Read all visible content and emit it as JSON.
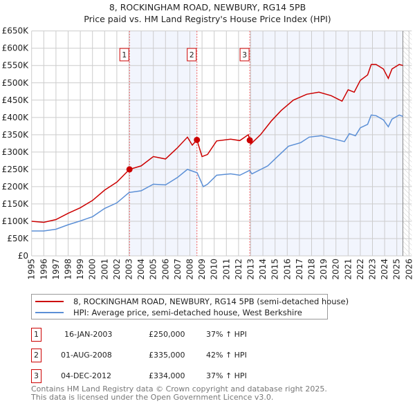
{
  "chart_data": {
    "type": "line",
    "title": "8, ROCKINGHAM ROAD, NEWBURY, RG14 5PB",
    "subtitle": "Price paid vs. HM Land Registry's House Price Index (HPI)",
    "xlim": [
      1995,
      2026
    ],
    "ylim": [
      0,
      650000
    ],
    "grid": true,
    "x_ticks": [
      "1995",
      "1996",
      "1997",
      "1998",
      "1999",
      "2000",
      "2001",
      "2002",
      "2003",
      "2004",
      "2005",
      "2006",
      "2007",
      "2008",
      "2009",
      "2010",
      "2011",
      "2012",
      "2013",
      "2014",
      "2015",
      "2016",
      "2017",
      "2018",
      "2019",
      "2020",
      "2021",
      "2022",
      "2023",
      "2024",
      "2025",
      "2026"
    ],
    "y_ticks": [
      "£0",
      "£50K",
      "£100K",
      "£150K",
      "£200K",
      "£250K",
      "£300K",
      "£350K",
      "£400K",
      "£450K",
      "£500K",
      "£550K",
      "£600K",
      "£650K"
    ],
    "series": [
      {
        "name": "8, ROCKINGHAM ROAD, NEWBURY, RG14 5PB (semi-detached house)",
        "color": "#cc0000",
        "x": [
          1995,
          1996,
          1997,
          1998,
          1999,
          2000,
          2001,
          2002,
          2003.04,
          2004,
          2005,
          2006,
          2007,
          2007.8,
          2008.2,
          2008.58,
          2009,
          2009.45,
          2010.2,
          2011.35,
          2012.1,
          2012.8,
          2012.92,
          2013,
          2013.8,
          2014.7,
          2015.5,
          2016.5,
          2017.6,
          2018.6,
          2019.6,
          2020.5,
          2021,
          2021.5,
          2022,
          2022.6,
          2022.9,
          2023.3,
          2023.9,
          2024.3,
          2024.6,
          2025.2,
          2025.5
        ],
        "y": [
          100000,
          97000,
          105000,
          123000,
          139000,
          160000,
          190000,
          213000,
          250000,
          260000,
          287000,
          280000,
          313000,
          343000,
          320000,
          335000,
          287000,
          293000,
          332000,
          337000,
          333000,
          350000,
          334000,
          323000,
          350000,
          390000,
          420000,
          450000,
          467000,
          473000,
          463000,
          447000,
          480000,
          473000,
          507000,
          523000,
          553000,
          553000,
          540000,
          513000,
          540000,
          553000,
          550000
        ]
      },
      {
        "name": "HPI: Average price, semi-detached house, West Berkshire",
        "color": "#5b8fd6",
        "x": [
          1995,
          1996,
          1997,
          1998,
          1999,
          2000,
          2001,
          2002,
          2003,
          2004,
          2005,
          2006,
          2007,
          2007.8,
          2008.6,
          2009.1,
          2009.45,
          2010.2,
          2011.35,
          2012.1,
          2012.9,
          2013.1,
          2014.4,
          2015.2,
          2016.1,
          2017.1,
          2017.8,
          2018.8,
          2019.7,
          2020.7,
          2021.1,
          2021.6,
          2022,
          2022.6,
          2022.9,
          2023.3,
          2023.9,
          2024.3,
          2024.6,
          2025.2,
          2025.5
        ],
        "y": [
          72000,
          72000,
          77000,
          90000,
          101000,
          113000,
          137000,
          153000,
          183000,
          188000,
          207000,
          205000,
          227000,
          250000,
          240000,
          200000,
          207000,
          233000,
          237000,
          233000,
          247000,
          237000,
          260000,
          287000,
          317000,
          327000,
          343000,
          347000,
          339000,
          330000,
          353000,
          347000,
          370000,
          380000,
          407000,
          405000,
          393000,
          373000,
          395000,
          407000,
          403000
        ]
      }
    ],
    "sales": [
      {
        "label": "1",
        "x": 2003.04,
        "date": "16-JAN-2003",
        "price": "£250,000",
        "value": 250000,
        "hpi": "37% ↑ HPI"
      },
      {
        "label": "2",
        "x": 2008.58,
        "date": "01-AUG-2008",
        "price": "£335,000",
        "value": 335000,
        "hpi": "42% ↑ HPI"
      },
      {
        "label": "3",
        "x": 2012.92,
        "date": "04-DEC-2012",
        "price": "£334,000",
        "value": 334000,
        "hpi": "37% ↑ HPI"
      }
    ],
    "data_end": 2025.5
  },
  "footer": {
    "line1": "Contains HM Land Registry data © Crown copyright and database right 2025.",
    "line2": "This data is licensed under the Open Government Licence v3.0."
  }
}
